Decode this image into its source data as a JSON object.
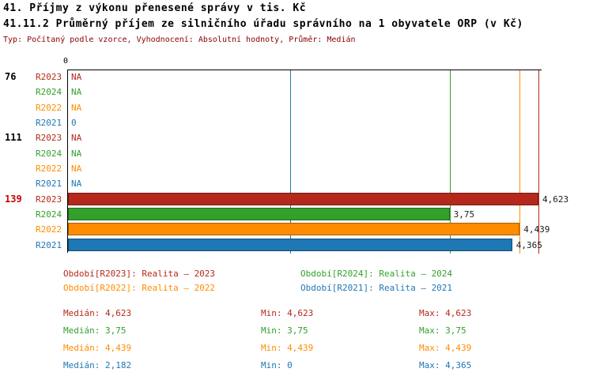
{
  "title1": "41. Příjmy z výkonu přenesené správy v tis. Kč",
  "title2": "41.11.2 Průměrný příjem ze silničního úřadu správního na 1 obyvatele ORP (v Kč)",
  "subtitle": "Typ: Počítaný podle vzorce, Vyhodnocení: Absolutní hodnoty, Průměr: Medián",
  "colors": {
    "R2023": "#b5291c",
    "R2024": "#33a02c",
    "R2022": "#ff8c00",
    "R2021": "#1f77b4",
    "highlight_group_label": "#cc0000",
    "subtitle": "#8b0000",
    "axis": "#000000",
    "value_label": "#1a1a1a"
  },
  "chart_data": {
    "type": "bar",
    "orientation": "horizontal",
    "title": "41.11.2 Průměrný příjem ze silničního úřadu správního na 1 obyvatele ORP (v Kč)",
    "x_axis": {
      "zero_label": "0",
      "min": 0,
      "max": 4.662
    },
    "series_order": [
      "R2023",
      "R2024",
      "R2022",
      "R2021"
    ],
    "groups": [
      {
        "label": "76",
        "label_color": "#000000",
        "rows": [
          {
            "series": "R2023",
            "value": null,
            "value_text": "NA"
          },
          {
            "series": "R2024",
            "value": null,
            "value_text": "NA"
          },
          {
            "series": "R2022",
            "value": null,
            "value_text": "NA"
          },
          {
            "series": "R2021",
            "value": 0,
            "value_text": "0"
          }
        ]
      },
      {
        "label": "111",
        "label_color": "#000000",
        "rows": [
          {
            "series": "R2023",
            "value": null,
            "value_text": "NA"
          },
          {
            "series": "R2024",
            "value": null,
            "value_text": "NA"
          },
          {
            "series": "R2022",
            "value": null,
            "value_text": "NA"
          },
          {
            "series": "R2021",
            "value": null,
            "value_text": "NA"
          }
        ]
      },
      {
        "label": "139",
        "label_color": "#cc0000",
        "rows": [
          {
            "series": "R2023",
            "value": 4.623,
            "value_text": "4,623"
          },
          {
            "series": "R2024",
            "value": 3.75,
            "value_text": "3,75"
          },
          {
            "series": "R2022",
            "value": 4.439,
            "value_text": "4,439"
          },
          {
            "series": "R2021",
            "value": 4.365,
            "value_text": "4,365"
          }
        ]
      }
    ],
    "median_lines": [
      {
        "series": "R2023",
        "value": 4.623
      },
      {
        "series": "R2024",
        "value": 3.75
      },
      {
        "series": "R2022",
        "value": 4.439
      },
      {
        "series": "R2021",
        "value": 2.182
      }
    ]
  },
  "legend": [
    {
      "series": "R2023",
      "text": "Období[R2023]: Realita – 2023"
    },
    {
      "series": "R2024",
      "text": "Období[R2024]: Realita – 2024"
    },
    {
      "series": "R2022",
      "text": "Období[R2022]: Realita – 2022"
    },
    {
      "series": "R2021",
      "text": "Období[R2021]: Realita – 2021"
    }
  ],
  "stats": [
    {
      "series": "R2023",
      "median": "Medián: 4,623",
      "min": "Min: 4,623",
      "max": "Max: 4,623"
    },
    {
      "series": "R2024",
      "median": "Medián: 3,75",
      "min": "Min: 3,75",
      "max": "Max: 3,75"
    },
    {
      "series": "R2022",
      "median": "Medián: 4,439",
      "min": "Min: 4,439",
      "max": "Max: 4,439"
    },
    {
      "series": "R2021",
      "median": "Medián: 2,182",
      "min": "Min: 0",
      "max": "Max: 4,365"
    }
  ]
}
